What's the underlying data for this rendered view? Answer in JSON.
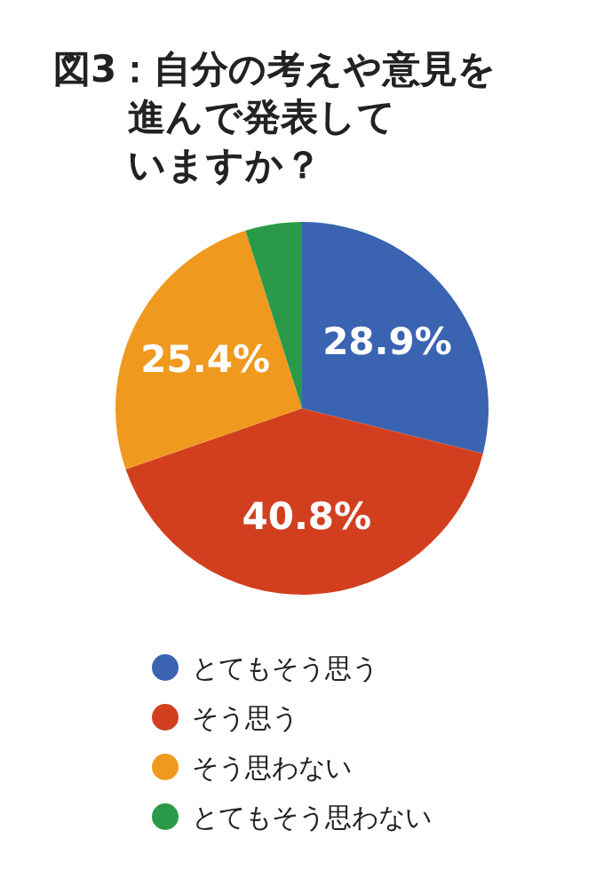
{
  "chart_data": {
    "type": "pie",
    "title": "図3：自分の考えや意見を進んで発表していますか？",
    "categories": [
      "とてもそう思う",
      "そう思う",
      "そう思わない",
      "とてもそう思わない"
    ],
    "values": [
      28.9,
      40.8,
      25.4,
      4.9
    ],
    "value_labels": [
      "28.9%",
      "40.8%",
      "25.4%",
      null
    ],
    "colors": [
      "#3a63b1",
      "#d23f1f",
      "#f0991f",
      "#2b9a48"
    ],
    "legend": "bottom"
  }
}
